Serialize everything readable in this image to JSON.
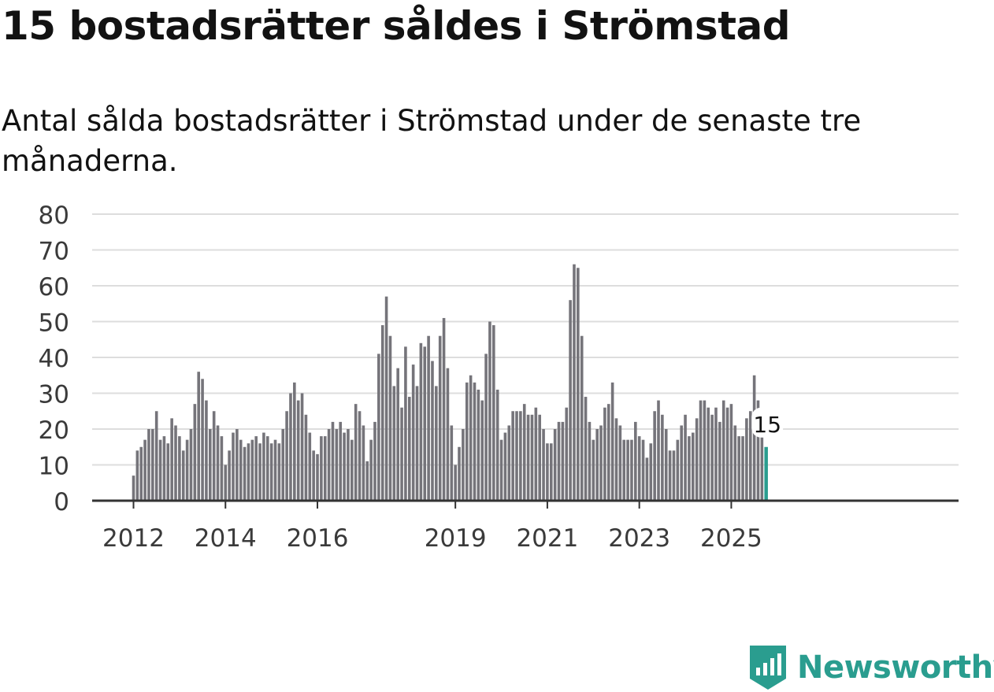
{
  "title": "15 bostadsrätter såldes i Strömstad",
  "subtitle_lines": [
    "Antal sålda bostadsrätter i Strömstad under de senaste tre",
    "månaderna."
  ],
  "brand": {
    "name": "Newsworthy",
    "color": "#2a9d8f"
  },
  "chart_data": {
    "type": "bar",
    "title": "15 bostadsrätter såldes i Strömstad",
    "subtitle": "Antal sålda bostadsrätter i Strömstad under de senaste tre månaderna.",
    "xlabel": "",
    "ylabel": "",
    "ylim": [
      0,
      80
    ],
    "y_ticks": [
      0,
      10,
      20,
      30,
      40,
      50,
      60,
      70,
      80
    ],
    "x_ticks": [
      {
        "label": "2012",
        "index": 0
      },
      {
        "label": "2014",
        "index": 24
      },
      {
        "label": "2016",
        "index": 48
      },
      {
        "label": "2019",
        "index": 84
      },
      {
        "label": "2021",
        "index": 108
      },
      {
        "label": "2023",
        "index": 132
      },
      {
        "label": "2025",
        "index": 156
      }
    ],
    "frequency": "monthly, rolling three-month totals",
    "start": "2012-01",
    "bar_color": "#75747a",
    "highlight_color": "#2a9d8f",
    "highlight_label": "15",
    "values": [
      7,
      14,
      15,
      17,
      20,
      20,
      25,
      17,
      18,
      16,
      23,
      21,
      18,
      14,
      17,
      20,
      27,
      36,
      34,
      28,
      20,
      25,
      21,
      18,
      10,
      14,
      19,
      20,
      17,
      15,
      16,
      17,
      18,
      16,
      19,
      18,
      16,
      17,
      16,
      20,
      25,
      30,
      33,
      28,
      30,
      24,
      19,
      14,
      13,
      18,
      18,
      20,
      22,
      20,
      22,
      19,
      20,
      17,
      27,
      25,
      21,
      11,
      17,
      22,
      41,
      49,
      57,
      46,
      32,
      37,
      26,
      43,
      29,
      38,
      32,
      44,
      43,
      46,
      39,
      32,
      46,
      51,
      37,
      21,
      10,
      15,
      20,
      33,
      35,
      33,
      31,
      28,
      41,
      50,
      49,
      31,
      17,
      19,
      21,
      25,
      25,
      25,
      27,
      24,
      24,
      26,
      24,
      20,
      16,
      16,
      20,
      22,
      22,
      26,
      56,
      66,
      65,
      46,
      29,
      22,
      17,
      20,
      21,
      26,
      27,
      33,
      23,
      21,
      17,
      17,
      17,
      22,
      18,
      17,
      12,
      16,
      25,
      28,
      24,
      20,
      14,
      14,
      17,
      21,
      24,
      18,
      19,
      23,
      28,
      28,
      26,
      24,
      26,
      22,
      28,
      26,
      27,
      21,
      18,
      18,
      23,
      25,
      35,
      28,
      18,
      15
    ]
  }
}
